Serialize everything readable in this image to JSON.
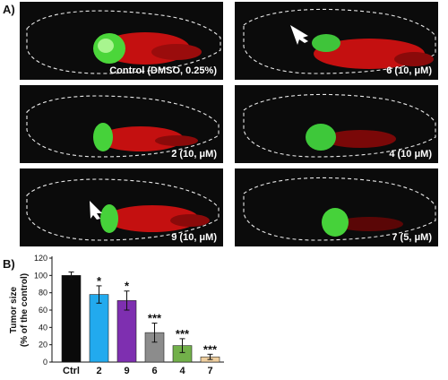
{
  "panel_a": {
    "letter": "A)",
    "images": [
      {
        "label": "Control (DMSO, 0.25%)",
        "arrow": false
      },
      {
        "label": "6 (10, μM)",
        "arrow": true
      },
      {
        "label": "2 (10, μM)",
        "arrow": false
      },
      {
        "label": "4 (10 μM)",
        "arrow": false
      },
      {
        "label": "9 (10, μM)",
        "arrow": true
      },
      {
        "label": "7 (5, μM)",
        "arrow": false
      }
    ]
  },
  "panel_b": {
    "letter": "B)"
  },
  "chart_data": {
    "type": "bar",
    "title": "",
    "xlabel": "",
    "ylabel": "Tumor size (% of the control)",
    "ylabel_lines": [
      "Tumor size",
      "(% of the control)"
    ],
    "ylim": [
      0,
      120
    ],
    "yticks": [
      0,
      20,
      40,
      60,
      80,
      100,
      120
    ],
    "grid": false,
    "categories": [
      "Ctrl",
      "2",
      "9",
      "6",
      "4",
      "7"
    ],
    "values": [
      100,
      78,
      71,
      34,
      19,
      6
    ],
    "errors": [
      4,
      10,
      11,
      11,
      8,
      3
    ],
    "significance": [
      "",
      "*",
      "*",
      "***",
      "***",
      "***"
    ],
    "colors": [
      "#0a0a0a",
      "#22aaee",
      "#7e2fb0",
      "#8c8c8c",
      "#72b04a",
      "#efcf9f"
    ]
  }
}
